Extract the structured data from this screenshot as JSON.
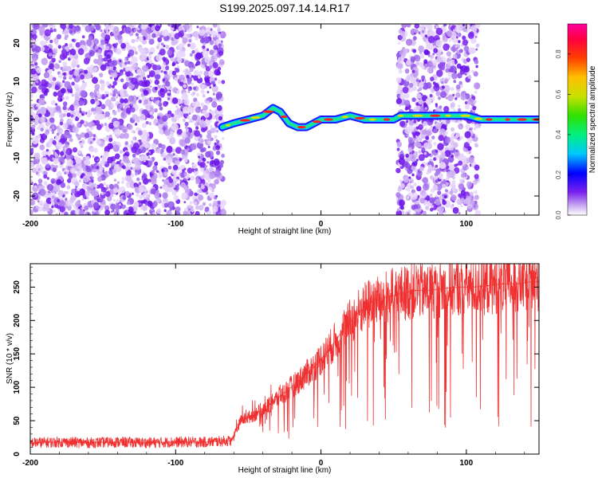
{
  "title": "S199.2025.097.14.14.R17",
  "colors": {
    "snr_line": "#f03030",
    "noise_purple": "#7a22ee",
    "axis": "#000000"
  },
  "chart_data": [
    {
      "type": "heatmap",
      "xlabel": "Height of straight line (km)",
      "ylabel": "Frequency (Hz)",
      "xlim": [
        -200,
        150
      ],
      "ylim": [
        -25,
        25
      ],
      "xticks": [
        "-200",
        "-100",
        "0",
        "100"
      ],
      "yticks": [
        "20",
        "10",
        "0",
        "-10",
        "-20"
      ],
      "grid": false,
      "colorbar": {
        "label": "Normalized spectral amplitude",
        "range": [
          0,
          0.95
        ],
        "ticks": [
          "0.0",
          "0.2",
          "0.4",
          "0.6",
          "0.8"
        ],
        "colormap": "rainbow"
      },
      "noise_regions_km": [
        [
          -200,
          -67
        ],
        [
          53,
          108
        ]
      ],
      "signal_track": {
        "x_km": [
          -68,
          -60,
          -50,
          -40,
          -33,
          -28,
          -22,
          -16,
          -10,
          -5,
          0,
          10,
          20,
          30,
          40,
          50,
          55,
          60,
          70,
          80,
          90,
          100,
          110,
          120,
          130,
          140,
          150
        ],
        "freq_hz": [
          -2,
          -1,
          0,
          1,
          3,
          2,
          -1,
          -2,
          -2,
          -1,
          0,
          0,
          1,
          0,
          0,
          0,
          1,
          1,
          1,
          1,
          1,
          1,
          0,
          0,
          0,
          0,
          0
        ]
      }
    },
    {
      "type": "line",
      "xlabel": "Height of straight line (km)",
      "ylabel": "SNR (10 * v/v)",
      "xlim": [
        -200,
        150
      ],
      "ylim": [
        0,
        285
      ],
      "xticks": [
        "-200",
        "-100",
        "0",
        "100"
      ],
      "yticks": [
        "0",
        "50",
        "100",
        "150",
        "200",
        "250"
      ],
      "grid": false,
      "series": [
        {
          "x": [
            -200,
            -180,
            -160,
            -140,
            -120,
            -100,
            -80,
            -62,
            -55,
            -45,
            -35,
            -25,
            -15,
            -5,
            5,
            15,
            25,
            35,
            45,
            55,
            65,
            75,
            85,
            95,
            105,
            115,
            125,
            135,
            145,
            150
          ],
          "values": [
            17,
            18,
            17,
            18,
            17,
            18,
            18,
            20,
            50,
            60,
            75,
            92,
            110,
            130,
            155,
            185,
            210,
            228,
            235,
            240,
            245,
            245,
            248,
            250,
            250,
            252,
            255,
            255,
            258,
            258
          ]
        }
      ]
    }
  ]
}
